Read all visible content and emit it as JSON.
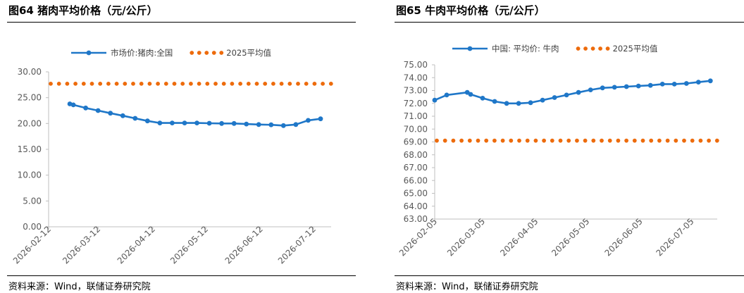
{
  "charts": [
    {
      "figure_title": "图64 猪肉平均价格（元/公斤）",
      "source": "资料来源：Wind，联储证券研究院"
    },
    {
      "figure_title": "图65 牛肉平均价格（元/公斤）",
      "source": "资料来源：Wind，联储证券研究院"
    }
  ],
  "chart_data": [
    {
      "type": "line",
      "title": "图64 猪肉平均价格（元/公斤）",
      "xlabel": "",
      "ylabel": "",
      "x_tick_labels": [
        "2026-02-12",
        "2026-03-12",
        "2026-04-12",
        "2026-05-12",
        "2026-06-12",
        "2026-07-12"
      ],
      "y_tick_labels": [
        "0.00",
        "5.00",
        "10.00",
        "15.00",
        "20.00",
        "25.00",
        "30.00"
      ],
      "xlim": [
        "2026-02-12",
        "2026-07-22"
      ],
      "ylim": [
        0,
        30
      ],
      "grid": false,
      "legend_position": "top",
      "series": [
        {
          "name": "市场价:猪肉:全国",
          "style": "solid line with circle markers",
          "color": "#1f77c8",
          "x": [
            "2026-02-24",
            "2026-02-26",
            "2026-03-05",
            "2026-03-12",
            "2026-03-19",
            "2026-03-26",
            "2026-04-02",
            "2026-04-09",
            "2026-04-16",
            "2026-04-23",
            "2026-04-30",
            "2026-05-07",
            "2026-05-14",
            "2026-05-21",
            "2026-05-28",
            "2026-06-04",
            "2026-06-11",
            "2026-06-18",
            "2026-06-25",
            "2026-07-02",
            "2026-07-09",
            "2026-07-16"
          ],
          "values": [
            23.8,
            23.6,
            23.0,
            22.5,
            22.0,
            21.5,
            21.0,
            20.5,
            20.1,
            20.1,
            20.1,
            20.1,
            20.05,
            20.0,
            20.0,
            19.9,
            19.8,
            19.75,
            19.6,
            19.8,
            20.6,
            20.9
          ]
        },
        {
          "name": "2025平均值",
          "style": "dotted",
          "color": "#ed6b0c",
          "x": [
            "2026-02-12",
            "2026-07-22"
          ],
          "values": [
            27.7,
            27.7
          ]
        }
      ]
    },
    {
      "type": "line",
      "title": "图65 牛肉平均价格（元/公斤）",
      "xlabel": "",
      "ylabel": "",
      "x_tick_labels": [
        "2026-02-05",
        "2026-03-05",
        "2026-04-05",
        "2026-05-05",
        "2026-06-05",
        "2026-07-05"
      ],
      "y_tick_labels": [
        "63.00",
        "64.00",
        "65.00",
        "66.00",
        "67.00",
        "68.00",
        "69.00",
        "70.00",
        "71.00",
        "72.00",
        "73.00",
        "74.00",
        "75.00"
      ],
      "xlim": [
        "2026-02-05",
        "2026-07-20"
      ],
      "ylim": [
        63,
        75
      ],
      "grid": false,
      "legend_position": "top",
      "series": [
        {
          "name": "中国: 平均价: 牛肉",
          "style": "solid line with circle markers",
          "color": "#1f77c8",
          "x": [
            "2026-02-05",
            "2026-02-12",
            "2026-02-24",
            "2026-02-26",
            "2026-03-05",
            "2026-03-12",
            "2026-03-19",
            "2026-03-26",
            "2026-04-02",
            "2026-04-09",
            "2026-04-16",
            "2026-04-23",
            "2026-04-30",
            "2026-05-07",
            "2026-05-14",
            "2026-05-21",
            "2026-05-28",
            "2026-06-04",
            "2026-06-11",
            "2026-06-18",
            "2026-06-25",
            "2026-07-02",
            "2026-07-09",
            "2026-07-16"
          ],
          "values": [
            72.25,
            72.65,
            72.85,
            72.7,
            72.4,
            72.15,
            72.0,
            72.0,
            72.05,
            72.25,
            72.45,
            72.65,
            72.85,
            73.05,
            73.2,
            73.25,
            73.3,
            73.35,
            73.4,
            73.5,
            73.5,
            73.55,
            73.65,
            73.75
          ]
        },
        {
          "name": "2025平均值",
          "style": "dotted",
          "color": "#ed6b0c",
          "x": [
            "2026-02-05",
            "2026-07-20"
          ],
          "values": [
            69.1,
            69.1
          ]
        }
      ]
    }
  ]
}
